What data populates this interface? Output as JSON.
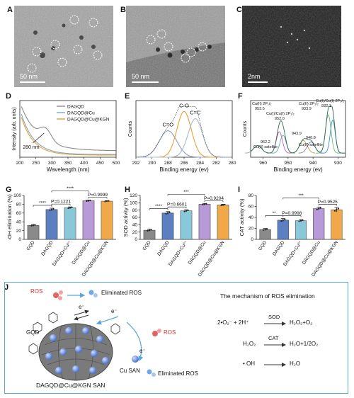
{
  "panels": {
    "A": {
      "label": "A",
      "scale": "50 nm"
    },
    "B": {
      "label": "B",
      "scale": "50 nm"
    },
    "C": {
      "label": "C",
      "scale": "2nm"
    },
    "D": {
      "label": "D"
    },
    "E": {
      "label": "E"
    },
    "F": {
      "label": "F"
    },
    "G": {
      "label": "G"
    },
    "H": {
      "label": "H"
    },
    "I": {
      "label": "I"
    },
    "J": {
      "label": "J"
    }
  },
  "chart_data": [
    {
      "id": "D",
      "type": "line",
      "xlabel": "Wavelength (nm)",
      "ylabel": "Intensity (arb. units)",
      "xlim": [
        200,
        500
      ],
      "xticks": [
        200,
        250,
        300,
        350,
        400,
        450,
        500
      ],
      "series": [
        {
          "name": "DAGQD",
          "color": "#8a8a8a"
        },
        {
          "name": "DAGQD@Cu",
          "color": "#7aa7c7"
        },
        {
          "name": "DAGQD@Cu@KGN",
          "color": "#e8a030"
        }
      ],
      "annotations": [
        "280 nm"
      ]
    },
    {
      "id": "E",
      "type": "line",
      "xlabel": "Binding energy (ev)",
      "ylabel": "Counts",
      "xlim": [
        292,
        280
      ],
      "xticks": [
        292,
        290,
        288,
        286,
        284,
        282,
        280
      ],
      "peaks": [
        {
          "name": "C=O",
          "center": 288.0,
          "color": "#8a9cc8"
        },
        {
          "name": "C-O",
          "center": 286.0,
          "color": "#e8a030"
        },
        {
          "name": "C=C",
          "center": 284.6,
          "color": "#a8b8c8"
        }
      ]
    },
    {
      "id": "F",
      "type": "line",
      "xlabel": "Binding energy (ev)",
      "ylabel": "Counts",
      "xlim": [
        965,
        927
      ],
      "xticks": [
        960,
        950,
        940,
        930
      ],
      "annotations": [
        {
          "text": "Cu(II) 2P₁/₂",
          "value": "953.5"
        },
        {
          "text": "Cu(I)/Cu(I) 2P₁/₂",
          "value": "952.0"
        },
        {
          "text": "Cu(II) 2P₃/₂",
          "value": "933.9"
        },
        {
          "text": "Cu(I)/Cu(I) 2P₃/₂",
          "value": "932.1"
        },
        {
          "text": "943.9",
          "value": ""
        },
        {
          "text": "940.8",
          "value": ""
        },
        {
          "text": "962.2",
          "value": "Cu(II) satellite"
        },
        {
          "text": "Cu(II) satellite",
          "value": ""
        }
      ]
    },
    {
      "id": "G",
      "type": "bar",
      "ylabel": "·OH elimination (%)",
      "ylim": [
        0,
        100
      ],
      "yticks": [
        0,
        20,
        40,
        60,
        80,
        100
      ],
      "categories": [
        "GQD",
        "DAGQD",
        "DAGQD+Cu²⁺",
        "DAGQD@Cu",
        "DAGQD@Cu@KGN"
      ],
      "values": [
        32,
        68,
        72,
        88,
        87
      ],
      "errors": [
        2,
        3,
        2,
        1.5,
        1
      ],
      "colors": [
        "#8a8a8a",
        "#5b7fc0",
        "#88c8d8",
        "#b89ad8",
        "#f0a848"
      ],
      "sig": [
        {
          "text": "****",
          "from": 0,
          "to": 1
        },
        {
          "text": "****",
          "from": 1,
          "to": 3
        },
        {
          "text": "P=0.1221",
          "from": 1,
          "to": 2
        },
        {
          "text": "P=0.9999",
          "from": 3,
          "to": 4
        }
      ]
    },
    {
      "id": "H",
      "type": "bar",
      "ylabel": "SOD activity (%)",
      "ylim": [
        0,
        120
      ],
      "yticks": [
        0,
        20,
        40,
        60,
        80,
        100,
        120
      ],
      "categories": [
        "GQD",
        "DAGQD",
        "DAGQD+Cu²⁺",
        "DAGQD@Cu",
        "DAGQD@Cu@KGN"
      ],
      "values": [
        25,
        72,
        78,
        96,
        94
      ],
      "errors": [
        3,
        4,
        3,
        2,
        2
      ],
      "colors": [
        "#8a8a8a",
        "#5b7fc0",
        "#88c8d8",
        "#b89ad8",
        "#f0a848"
      ],
      "sig": [
        {
          "text": "****",
          "from": 0,
          "to": 1
        },
        {
          "text": "P=0.6601",
          "from": 1,
          "to": 2
        },
        {
          "text": "***",
          "from": 1,
          "to": 3
        },
        {
          "text": "P=0.9204",
          "from": 3,
          "to": 4
        }
      ]
    },
    {
      "id": "I",
      "type": "bar",
      "ylabel": "CAT activity (%)",
      "ylim": [
        0,
        80
      ],
      "yticks": [
        0,
        20,
        40,
        60,
        80
      ],
      "categories": [
        "GQD",
        "DAGQD",
        "DAGQD+Cu²⁺",
        "DAGQD@Cu",
        "DAGQD@Cu@KGN"
      ],
      "values": [
        18,
        35,
        34,
        56,
        54
      ],
      "errors": [
        2,
        3,
        2,
        3,
        4
      ],
      "colors": [
        "#8a8a8a",
        "#5b7fc0",
        "#88c8d8",
        "#b89ad8",
        "#f0a848"
      ],
      "sig": [
        {
          "text": "**",
          "from": 0,
          "to": 1
        },
        {
          "text": "P=0.9998",
          "from": 1,
          "to": 2
        },
        {
          "text": "***",
          "from": 1,
          "to": 3
        },
        {
          "text": "P=0.9525",
          "from": 3,
          "to": 4
        }
      ]
    }
  ],
  "mechanism": {
    "ros_left": "ROS",
    "eliminated_top": "Eliminated ROS",
    "ros_right": "ROS",
    "eliminated_bottom": "Eliminated ROS",
    "electron": "e⁻",
    "gqd": "GQD",
    "cu_san": "Cu SAN",
    "structure": "DAGQD@Cu@KGN SAN",
    "title": "The mechanism of ROS elimination",
    "reactions": [
      {
        "left": "2•O₂⁻ + 2H⁺",
        "enzyme": "SOD",
        "right": "H₂O₂+O₂"
      },
      {
        "left": "H₂O₂",
        "enzyme": "CAT",
        "right": "H₂O+1/2O₂"
      },
      {
        "left": "• OH",
        "enzyme": "",
        "right": "H₂O"
      }
    ]
  }
}
